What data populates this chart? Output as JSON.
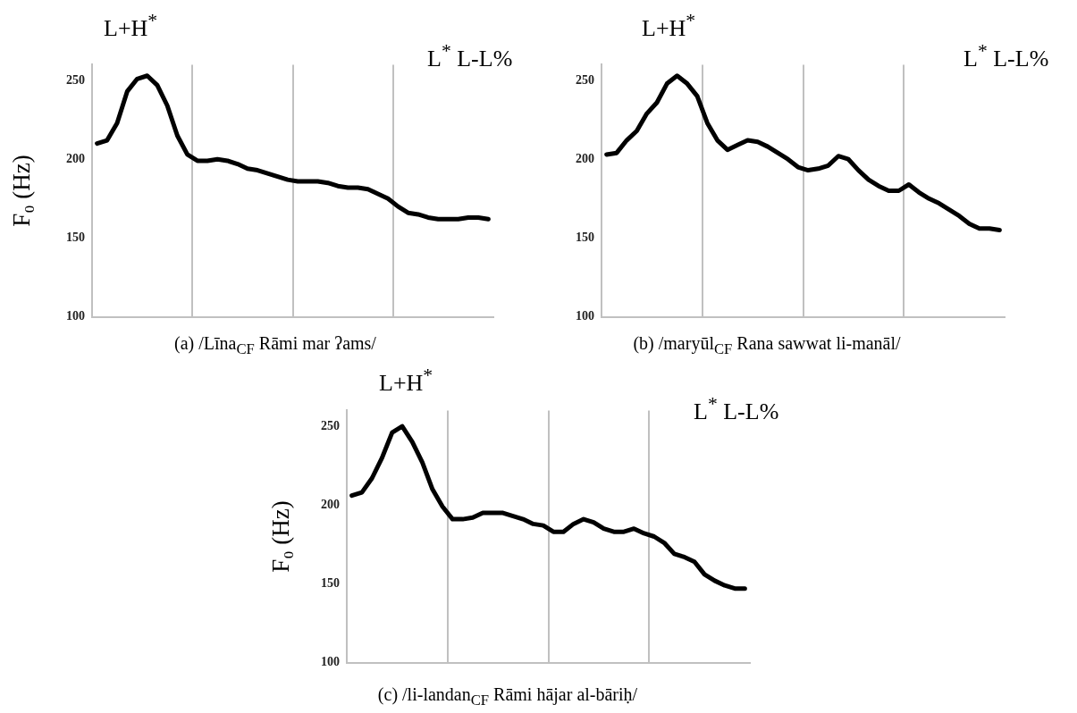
{
  "chart_data": [
    {
      "type": "line",
      "ylabel": "F₀ (Hz)",
      "annotations": [
        "L+H$^{*}$",
        "L$^{*}$ L-L%",
        "(a) /Līna$_{CF}$ Rāmi mar ʔams/"
      ],
      "categories": [
        null,
        null,
        null,
        null,
        null,
        null,
        null,
        null,
        null,
        null,
        null,
        null,
        null,
        null,
        null,
        null,
        null,
        null,
        null,
        null,
        null,
        null,
        null,
        null,
        null,
        null,
        null,
        null,
        null,
        null,
        null,
        null,
        null,
        null,
        null,
        null,
        null,
        null,
        null,
        null
      ],
      "ylim": [
        100,
        260
      ],
      "yticks": [
        100,
        150,
        200,
        250
      ],
      "grid": "x",
      "tick_labels": "y",
      "legend": false,
      "marker": "none",
      "line_style": "solid",
      "series": [
        {
          "color": "#000000",
          "values": [
            210,
            212,
            223,
            243,
            251,
            253,
            247,
            234,
            215,
            203,
            199,
            199,
            200,
            199,
            197,
            194,
            193,
            191,
            189,
            187,
            186,
            186,
            186,
            185,
            183,
            182,
            182,
            181,
            178,
            175,
            170,
            166,
            165,
            163,
            162,
            162,
            162,
            163,
            163,
            162
          ]
        }
      ]
    },
    {
      "type": "line",
      "annotations": [
        "L+H$^{*}$",
        "L$^{*}$ L-L%",
        "(b) /maryūl$_{CF}$ Rana sawwat li-manāl/"
      ],
      "categories": [
        null,
        null,
        null,
        null,
        null,
        null,
        null,
        null,
        null,
        null,
        null,
        null,
        null,
        null,
        null,
        null,
        null,
        null,
        null,
        null,
        null,
        null,
        null,
        null,
        null,
        null,
        null,
        null,
        null,
        null,
        null,
        null,
        null,
        null,
        null,
        null,
        null,
        null,
        null,
        null
      ],
      "ylim": [
        100,
        260
      ],
      "yticks": [
        100,
        150,
        200,
        250
      ],
      "grid": "x",
      "tick_labels": "y",
      "legend": false,
      "marker": "none",
      "line_style": "solid",
      "series": [
        {
          "color": "#000000",
          "values": [
            203,
            204,
            212,
            218,
            229,
            236,
            248,
            253,
            248,
            240,
            223,
            212,
            206,
            209,
            212,
            211,
            208,
            204,
            200,
            195,
            193,
            194,
            196,
            202,
            200,
            193,
            187,
            183,
            180,
            180,
            184,
            179,
            175,
            172,
            168,
            164,
            159,
            156,
            156,
            155
          ]
        }
      ]
    },
    {
      "type": "line",
      "ylabel": "F₀ (Hz)",
      "annotations": [
        "L+H$^{*}$",
        "L$^{*}$ L-L%",
        "(c) /li-landan$_{CF}$ Rāmi hājar al-bāriḥ/"
      ],
      "categories": [
        null,
        null,
        null,
        null,
        null,
        null,
        null,
        null,
        null,
        null,
        null,
        null,
        null,
        null,
        null,
        null,
        null,
        null,
        null,
        null,
        null,
        null,
        null,
        null,
        null,
        null,
        null,
        null,
        null,
        null,
        null,
        null,
        null,
        null,
        null,
        null,
        null,
        null,
        null,
        null
      ],
      "ylim": [
        100,
        260
      ],
      "yticks": [
        100,
        150,
        200,
        250
      ],
      "grid": "x",
      "tick_labels": "y",
      "legend": false,
      "marker": "none",
      "line_style": "solid",
      "series": [
        {
          "color": "#000000",
          "values": [
            206,
            208,
            217,
            230,
            246,
            250,
            240,
            227,
            210,
            199,
            191,
            191,
            192,
            195,
            195,
            195,
            193,
            191,
            188,
            187,
            183,
            183,
            188,
            191,
            189,
            185,
            183,
            183,
            185,
            182,
            180,
            176,
            169,
            167,
            164,
            156,
            152,
            149,
            147,
            147
          ]
        }
      ]
    }
  ]
}
